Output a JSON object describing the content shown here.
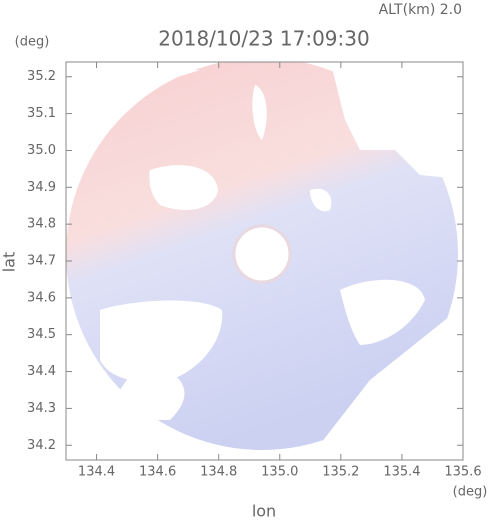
{
  "chart_data": {
    "type": "radar-map",
    "title": "2018/10/23 17:09:30",
    "subtitle": "ALT(km) 2.0",
    "x_label": "lon",
    "x_unit": "(deg)",
    "y_label": "lat",
    "y_unit": "(deg)",
    "xlim": [
      134.3,
      135.6
    ],
    "ylim": [
      34.16,
      35.24
    ],
    "xticks": [
      134.4,
      134.6,
      134.8,
      {
        "value": 135.0,
        "label": "135.0"
      },
      135.2,
      135.4,
      135.6
    ],
    "yticks": [
      34.2,
      34.3,
      34.4,
      34.5,
      34.6,
      34.7,
      34.8,
      34.9,
      {
        "value": 35.0,
        "label": "35.0"
      },
      35.1,
      35.2
    ]
  }
}
